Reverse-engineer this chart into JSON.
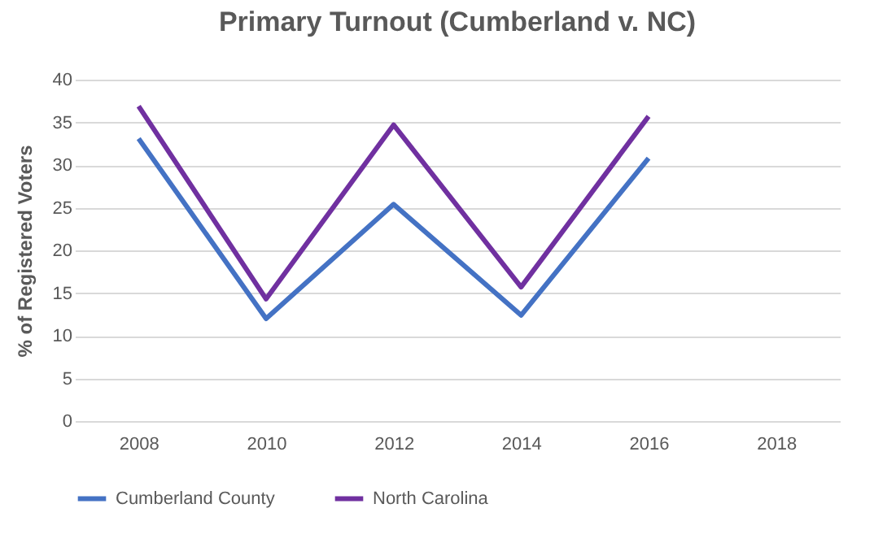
{
  "chart_data": {
    "type": "line",
    "title": "Primary Turnout (Cumberland v. NC)",
    "ylabel": "% of Registered Voters",
    "categories": [
      "2008",
      "2010",
      "2012",
      "2014",
      "2016",
      "2018"
    ],
    "series": [
      {
        "name": "Cumberland County",
        "color": "#4472c4",
        "values": [
          33.1,
          12.0,
          25.4,
          12.4,
          30.8,
          null
        ]
      },
      {
        "name": "North Carolina",
        "color": "#7030a0",
        "values": [
          36.9,
          14.3,
          34.7,
          15.7,
          35.7,
          null
        ]
      }
    ],
    "ylim": [
      0,
      40
    ],
    "yticks": [
      0,
      5,
      10,
      15,
      20,
      25,
      30,
      35,
      40
    ],
    "grid": "y",
    "legend": "bottom"
  }
}
